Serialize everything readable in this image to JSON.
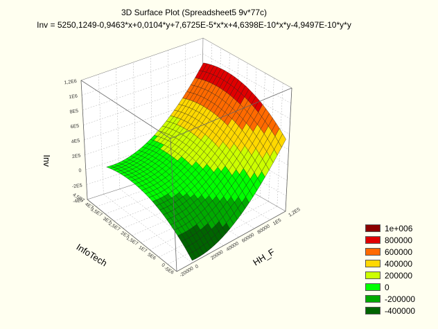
{
  "chart_data": {
    "type": "surface3d",
    "title": "3D Surface Plot (Spreadsheet5 9v*77c)",
    "subtitle": "Inv = 5250,1249-0,9463*x+0,0104*y+7,6725E-5*x*x+4,6398E-10*x*y-4,9497E-10*y*y",
    "equation": {
      "intercept": 5250.1249,
      "x": -0.9463,
      "y": 0.0104,
      "xx": 7.6725e-05,
      "xy": 4.6398e-10,
      "yy": -4.9497e-10
    },
    "x_label": "HH_F",
    "y_label": "InfoTech",
    "z_label": "Inv",
    "x_range": [
      -20000,
      120000
    ],
    "y_range": [
      -2000000,
      40000000
    ],
    "z_range": [
      -400000,
      1200000
    ],
    "x_ticks": [
      "-20000",
      "0",
      "20000",
      "40000",
      "60000",
      "80000",
      "1E5",
      "1,2E5"
    ],
    "y_ticks": [
      "-5E6",
      "0",
      "5E6",
      "1E7",
      "1,5E7",
      "2E7",
      "2,5E7",
      "3E7",
      "3,5E7",
      "4E7",
      "4,5E7"
    ],
    "z_ticks": [
      "-4E5",
      "-2E5",
      "0",
      "2E5",
      "4E5",
      "6E5",
      "8E5",
      "1E6",
      "1,2E6"
    ],
    "legend": [
      {
        "label": "1e+006",
        "color": "#8b0000"
      },
      {
        "label": "800000",
        "color": "#e00000"
      },
      {
        "label": "600000",
        "color": "#ff6a00"
      },
      {
        "label": "400000",
        "color": "#ffd800"
      },
      {
        "label": "200000",
        "color": "#ccff00"
      },
      {
        "label": "0",
        "color": "#00ff00"
      },
      {
        "label": "-200000",
        "color": "#00aa00"
      },
      {
        "label": "-400000",
        "color": "#006400"
      }
    ]
  }
}
